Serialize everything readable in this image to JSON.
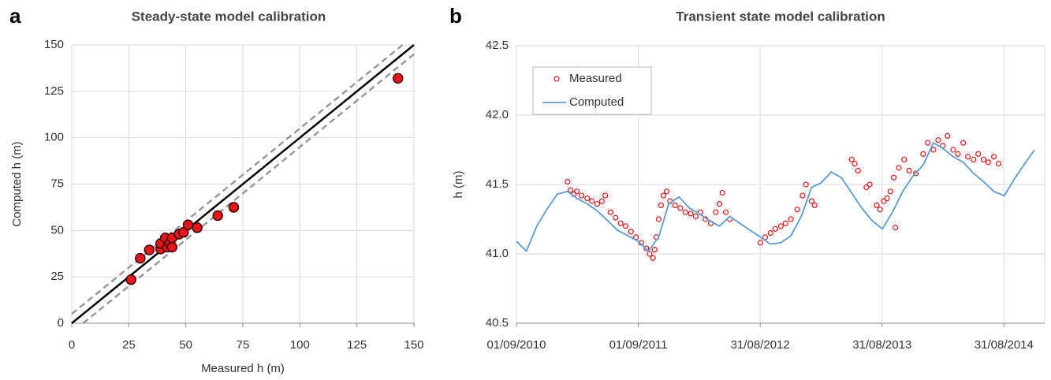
{
  "chart_data": [
    {
      "type": "scatter",
      "panel_label": "a",
      "title": "Steady-state model calibration",
      "x_label": "Measured h (m)",
      "y_label": "Computed h (m)",
      "x": [
        26,
        30,
        34,
        39,
        39,
        41,
        42,
        43,
        44,
        44,
        47,
        49,
        51,
        55,
        64,
        71,
        143
      ],
      "values": [
        23.5,
        35,
        39.5,
        40,
        43,
        46,
        41,
        43,
        41,
        46,
        48,
        49,
        53,
        51.5,
        58,
        62.5,
        132
      ],
      "color": "#e8161b",
      "identity_line": true,
      "dashed_offsets": [
        -5,
        5
      ],
      "xlim": [
        0,
        150
      ],
      "xticks": [
        0,
        25,
        50,
        75,
        100,
        125,
        150
      ],
      "ylim": [
        0,
        150
      ],
      "yticks": [
        0,
        25,
        50,
        75,
        100,
        125,
        150
      ],
      "grid": true
    },
    {
      "type": "line",
      "panel_label": "b",
      "title": "Transient state model calibration",
      "y_label": "h (m)",
      "legend": "upper left",
      "xlim": [
        "2010-09-01",
        "2014-12-31"
      ],
      "xticks": [
        {
          "value": "2010-09-01",
          "label": "01/09/2010"
        },
        {
          "value": "2011-09-01",
          "label": "01/09/2011"
        },
        {
          "value": "2012-08-31",
          "label": "31/08/2012"
        },
        {
          "value": "2013-08-31",
          "label": "31/08/2013"
        },
        {
          "value": "2014-08-31",
          "label": "31/08/2014"
        }
      ],
      "ylim": [
        40.5,
        42.5
      ],
      "yticks": [
        40.5,
        {
          "value": 41,
          "label": "41.0"
        },
        41.5,
        {
          "value": 42,
          "label": "42.0"
        },
        42.5
      ],
      "grid": true,
      "series": [
        {
          "name": "Measured",
          "color": "#e8161b",
          "mark": "circle",
          "x": [
            "2011-02-01",
            "2011-02-10",
            "2011-02-20",
            "2011-03-01",
            "2011-03-15",
            "2011-04-01",
            "2011-04-15",
            "2011-05-01",
            "2011-05-15",
            "2011-05-25",
            "2011-06-10",
            "2011-06-25",
            "2011-07-10",
            "2011-07-25",
            "2011-08-10",
            "2011-08-25",
            "2011-09-10",
            "2011-09-25",
            "2011-10-05",
            "2011-10-15",
            "2011-10-20",
            "2011-10-25",
            "2011-11-01",
            "2011-11-08",
            "2011-11-15",
            "2011-11-25",
            "2011-12-05",
            "2011-12-20",
            "2012-01-05",
            "2012-01-20",
            "2012-02-05",
            "2012-02-20",
            "2012-03-05",
            "2012-03-20",
            "2012-04-05",
            "2012-04-20",
            "2012-05-01",
            "2012-05-10",
            "2012-05-20",
            "2012-06-01",
            "2012-09-01",
            "2012-09-15",
            "2012-10-01",
            "2012-10-15",
            "2012-11-01",
            "2012-11-15",
            "2012-12-01",
            "2012-12-20",
            "2013-01-05",
            "2013-01-15",
            "2013-02-01",
            "2013-02-10",
            "2013-06-01",
            "2013-06-10",
            "2013-06-20",
            "2013-07-15",
            "2013-07-25",
            "2013-08-15",
            "2013-08-25",
            "2013-09-05",
            "2013-09-15",
            "2013-09-25",
            "2013-10-05",
            "2013-10-10",
            "2013-10-20",
            "2013-11-05",
            "2013-11-20",
            "2013-12-10",
            "2014-01-01",
            "2014-01-15",
            "2014-02-01",
            "2014-02-15",
            "2014-03-01",
            "2014-03-15",
            "2014-04-01",
            "2014-04-15",
            "2014-05-01",
            "2014-05-15",
            "2014-06-01",
            "2014-06-15",
            "2014-07-01",
            "2014-07-15",
            "2014-08-01",
            "2014-08-15"
          ],
          "values": [
            41.52,
            41.46,
            41.43,
            41.45,
            41.42,
            41.4,
            41.38,
            41.36,
            41.38,
            41.42,
            41.3,
            41.26,
            41.22,
            41.2,
            41.16,
            41.12,
            41.08,
            41.04,
            41.0,
            40.97,
            41.03,
            41.12,
            41.25,
            41.35,
            41.42,
            41.45,
            41.38,
            41.35,
            41.33,
            41.3,
            41.29,
            41.27,
            41.3,
            41.25,
            41.22,
            41.3,
            41.36,
            41.44,
            41.3,
            41.25,
            41.08,
            41.12,
            41.15,
            41.18,
            41.2,
            41.22,
            41.25,
            41.32,
            41.42,
            41.5,
            41.38,
            41.35,
            41.68,
            41.65,
            41.6,
            41.48,
            41.5,
            41.35,
            41.32,
            41.38,
            41.4,
            41.45,
            41.55,
            41.19,
            41.62,
            41.68,
            41.6,
            41.58,
            41.72,
            41.8,
            41.75,
            41.82,
            41.78,
            41.85,
            41.75,
            41.72,
            41.8,
            41.7,
            41.68,
            41.72,
            41.68,
            41.66,
            41.7,
            41.65
          ]
        },
        {
          "name": "Computed",
          "color": "#5b9bd5",
          "mark": "line",
          "x": [
            "2010-09-01",
            "2010-10-01",
            "2010-11-01",
            "2010-12-01",
            "2011-01-01",
            "2011-02-01",
            "2011-03-01",
            "2011-04-01",
            "2011-05-01",
            "2011-06-01",
            "2011-07-01",
            "2011-08-01",
            "2011-09-01",
            "2011-10-01",
            "2011-11-01",
            "2011-12-01",
            "2012-01-01",
            "2012-02-01",
            "2012-03-01",
            "2012-04-01",
            "2012-05-01",
            "2012-06-01",
            "2012-07-01",
            "2012-08-01",
            "2012-09-01",
            "2012-10-01",
            "2012-11-01",
            "2012-12-01",
            "2013-01-01",
            "2013-02-01",
            "2013-03-01",
            "2013-04-01",
            "2013-05-01",
            "2013-06-01",
            "2013-07-01",
            "2013-08-01",
            "2013-09-01",
            "2013-10-01",
            "2013-11-01",
            "2013-12-01",
            "2014-01-01",
            "2014-02-01",
            "2014-03-01",
            "2014-04-01",
            "2014-05-01",
            "2014-06-01",
            "2014-07-01",
            "2014-08-01",
            "2014-09-01",
            "2014-10-01",
            "2014-11-01",
            "2014-12-01"
          ],
          "values": [
            41.09,
            41.02,
            41.2,
            41.32,
            41.43,
            41.45,
            41.4,
            41.36,
            41.31,
            41.24,
            41.17,
            41.13,
            41.09,
            41.02,
            41.12,
            41.36,
            41.41,
            41.33,
            41.29,
            41.24,
            41.2,
            41.27,
            41.22,
            41.17,
            41.12,
            41.07,
            41.08,
            41.13,
            41.27,
            41.48,
            41.51,
            41.59,
            41.55,
            41.44,
            41.33,
            41.24,
            41.18,
            41.3,
            41.45,
            41.56,
            41.64,
            41.8,
            41.76,
            41.7,
            41.66,
            41.58,
            41.52,
            41.45,
            41.42,
            41.54,
            41.65,
            41.75
          ]
        }
      ]
    }
  ]
}
